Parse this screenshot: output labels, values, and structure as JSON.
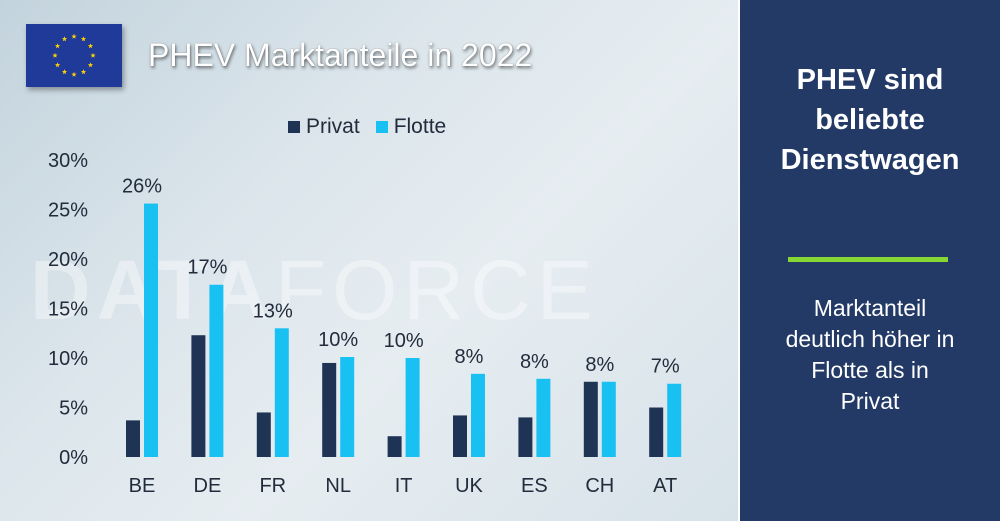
{
  "watermark": {
    "bold": "DATA",
    "light": "FORCE"
  },
  "chart_data": {
    "type": "bar",
    "title": "PHEV Marktanteile in 2022",
    "xlabel": "",
    "ylabel": "",
    "categories": [
      "BE",
      "DE",
      "FR",
      "NL",
      "IT",
      "UK",
      "ES",
      "CH",
      "AT"
    ],
    "series": [
      {
        "name": "Privat",
        "color": "#1f3454",
        "values": [
          3.7,
          12.3,
          4.5,
          9.5,
          2.1,
          4.2,
          4.0,
          7.6,
          5.0
        ]
      },
      {
        "name": "Flotte",
        "color": "#19c1f3",
        "values": [
          25.6,
          17.4,
          13.0,
          10.1,
          10.0,
          8.4,
          7.9,
          7.6,
          7.4
        ]
      }
    ],
    "data_labels": [
      "26%",
      "17%",
      "13%",
      "10%",
      "10%",
      "8%",
      "8%",
      "8%",
      "7%"
    ],
    "yticks": [
      "0%",
      "5%",
      "10%",
      "15%",
      "20%",
      "25%",
      "30%"
    ],
    "ylim": [
      0,
      30
    ],
    "grid": false,
    "legend_position": "top"
  },
  "side_panel": {
    "headline": [
      "PHEV sind",
      "beliebte",
      "Dienstwagen"
    ],
    "body": [
      "Marktanteil",
      "deutlich höher in",
      "Flotte als in",
      "Privat"
    ]
  },
  "colors": {
    "panel": "#233a66",
    "divider": "#86d634",
    "flag_blue": "#1f3a99",
    "flag_star": "#ffd200"
  }
}
